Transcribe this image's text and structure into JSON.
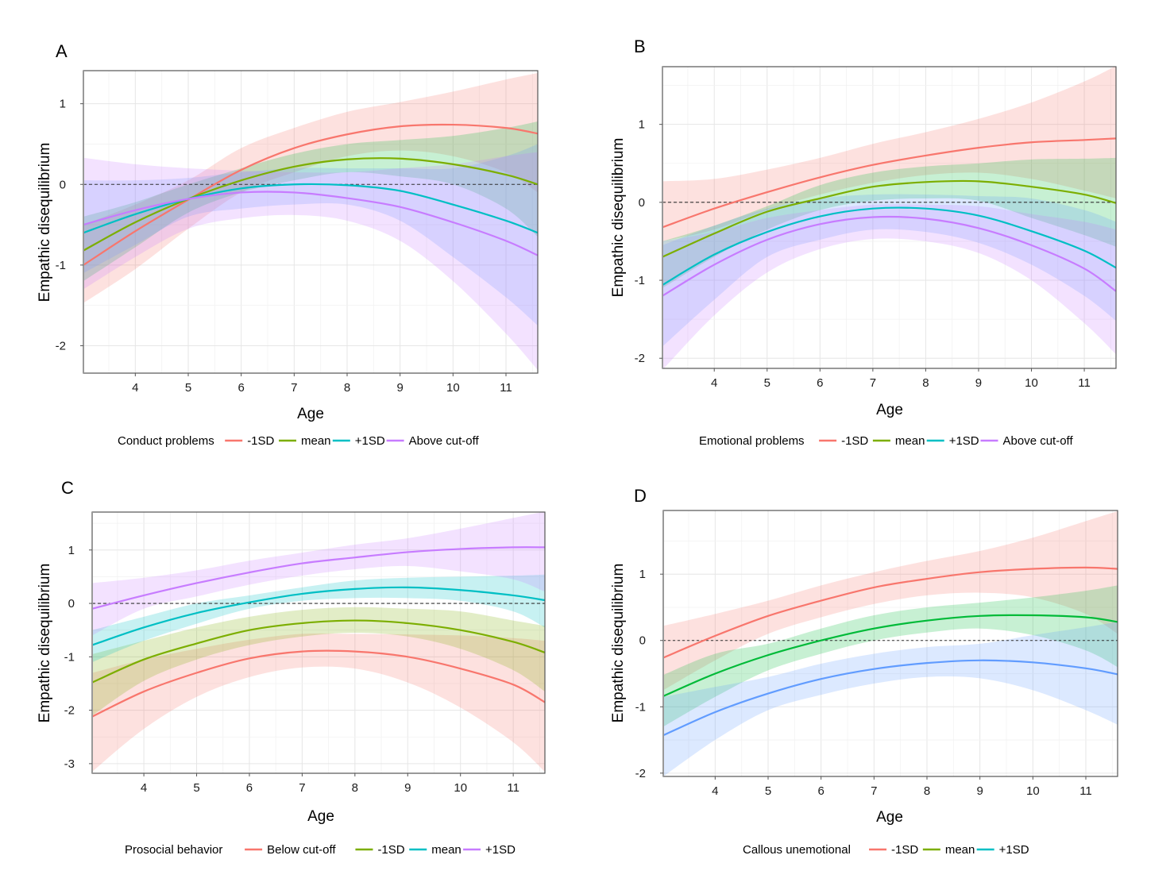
{
  "figure": {
    "description": "Four-panel figure of empathic disequilibrium trajectories by age"
  },
  "chart_data": [
    {
      "type": "line",
      "panel": "A",
      "title": "A",
      "xlabel": "Age",
      "ylabel": "Empathic disequilibrium",
      "xlim": [
        3.02,
        11.6
      ],
      "ylim": [
        -2.34,
        1.41
      ],
      "xticks": [
        4,
        5,
        6,
        7,
        8,
        9,
        10,
        11
      ],
      "yticks": [
        -2,
        -1,
        0,
        1
      ],
      "xtick_labels": [
        "4",
        "5",
        "6",
        "7",
        "8",
        "9",
        "10",
        "11"
      ],
      "ytick_labels": [
        "-2",
        "-1",
        "0",
        "1"
      ],
      "reference_line": {
        "y": 0,
        "style": "dashed"
      },
      "grid": true,
      "legend": {
        "title": "Conduct problems",
        "position": "bottom"
      },
      "x": [
        3.02,
        4,
        5,
        6,
        7,
        8,
        9,
        10,
        11,
        11.6
      ],
      "series": [
        {
          "name": "-1SD",
          "color": "#F8766D",
          "fill": "#F8766D",
          "values": [
            -1.0,
            -0.58,
            -0.19,
            0.18,
            0.45,
            0.62,
            0.72,
            0.74,
            0.7,
            0.63
          ],
          "lower": [
            -1.47,
            -1.05,
            -0.55,
            -0.1,
            0.15,
            0.35,
            0.42,
            0.35,
            0.15,
            -0.1
          ],
          "upper": [
            -0.5,
            -0.25,
            0.05,
            0.45,
            0.7,
            0.9,
            1.02,
            1.15,
            1.3,
            1.38
          ]
        },
        {
          "name": "mean",
          "color": "#7CAE00",
          "fill": "#00BA38",
          "values": [
            -0.82,
            -0.47,
            -0.18,
            0.05,
            0.22,
            0.31,
            0.32,
            0.25,
            0.12,
            0.0
          ],
          "lower": [
            -1.2,
            -0.78,
            -0.35,
            -0.1,
            0.05,
            0.15,
            0.1,
            0.0,
            -0.3,
            -0.65
          ],
          "upper": [
            -0.4,
            -0.22,
            0.0,
            0.2,
            0.38,
            0.5,
            0.55,
            0.6,
            0.7,
            0.78
          ]
        },
        {
          "name": "+1SD",
          "color": "#00BFC4",
          "fill": "#619CFF",
          "values": [
            -0.6,
            -0.37,
            -0.18,
            -0.05,
            0.0,
            -0.01,
            -0.08,
            -0.25,
            -0.45,
            -0.6
          ],
          "lower": [
            -1.1,
            -0.75,
            -0.4,
            -0.3,
            -0.25,
            -0.25,
            -0.45,
            -0.9,
            -1.4,
            -1.75
          ],
          "upper": [
            0.05,
            0.05,
            0.08,
            0.15,
            0.2,
            0.2,
            0.2,
            0.2,
            0.35,
            0.5
          ]
        },
        {
          "name": "Above cut-off",
          "color": "#C77CFF",
          "fill": "#C77CFF",
          "values": [
            -0.5,
            -0.32,
            -0.18,
            -0.1,
            -0.1,
            -0.17,
            -0.28,
            -0.47,
            -0.7,
            -0.88
          ],
          "lower": [
            -1.3,
            -0.9,
            -0.55,
            -0.42,
            -0.38,
            -0.45,
            -0.7,
            -1.2,
            -1.85,
            -2.3
          ],
          "upper": [
            0.33,
            0.25,
            0.2,
            0.17,
            0.15,
            0.15,
            0.2,
            0.25,
            0.35,
            0.4
          ]
        }
      ]
    },
    {
      "type": "line",
      "panel": "B",
      "title": "B",
      "xlabel": "Age",
      "ylabel": "Empathic disequilibrium",
      "xlim": [
        3.02,
        11.6
      ],
      "ylim": [
        -2.13,
        1.74
      ],
      "xticks": [
        4,
        5,
        6,
        7,
        8,
        9,
        10,
        11
      ],
      "yticks": [
        -2,
        -1,
        0,
        1
      ],
      "xtick_labels": [
        "4",
        "5",
        "6",
        "7",
        "8",
        "9",
        "10",
        "11"
      ],
      "ytick_labels": [
        "-2",
        "-1",
        "0",
        "1"
      ],
      "reference_line": {
        "y": 0,
        "style": "dashed"
      },
      "grid": true,
      "legend": {
        "title": "Emotional problems",
        "position": "bottom"
      },
      "x": [
        3.02,
        4,
        5,
        6,
        7,
        8,
        9,
        10,
        11,
        11.6
      ],
      "series": [
        {
          "name": "-1SD",
          "color": "#F8766D",
          "fill": "#F8766D",
          "values": [
            -0.32,
            -0.08,
            0.13,
            0.32,
            0.48,
            0.6,
            0.7,
            0.77,
            0.8,
            0.82
          ],
          "lower": [
            -0.5,
            -0.35,
            -0.1,
            0.1,
            0.25,
            0.35,
            0.38,
            0.3,
            0.15,
            0.05
          ],
          "upper": [
            0.27,
            0.3,
            0.42,
            0.57,
            0.75,
            0.9,
            1.07,
            1.28,
            1.55,
            1.75
          ]
        },
        {
          "name": "mean",
          "color": "#7CAE00",
          "fill": "#00BA38",
          "values": [
            -0.7,
            -0.4,
            -0.12,
            0.05,
            0.2,
            0.26,
            0.27,
            0.2,
            0.1,
            -0.01
          ],
          "lower": [
            -1.1,
            -0.7,
            -0.35,
            -0.1,
            0.02,
            0.05,
            0.02,
            -0.2,
            -0.42,
            -0.57
          ],
          "upper": [
            -0.5,
            -0.3,
            -0.05,
            0.22,
            0.38,
            0.46,
            0.5,
            0.55,
            0.56,
            0.57
          ]
        },
        {
          "name": "+1SD",
          "color": "#00BFC4",
          "fill": "#619CFF",
          "values": [
            -1.06,
            -0.67,
            -0.38,
            -0.18,
            -0.08,
            -0.08,
            -0.17,
            -0.37,
            -0.62,
            -0.84
          ],
          "lower": [
            -1.85,
            -1.25,
            -0.7,
            -0.48,
            -0.35,
            -0.38,
            -0.52,
            -0.8,
            -1.2,
            -1.52
          ],
          "upper": [
            -0.55,
            -0.3,
            -0.08,
            0.05,
            0.1,
            0.1,
            0.08,
            0.05,
            -0.1,
            -0.25
          ]
        },
        {
          "name": "Above cut-off",
          "color": "#C77CFF",
          "fill": "#C77CFF",
          "values": [
            -1.2,
            -0.8,
            -0.48,
            -0.28,
            -0.19,
            -0.21,
            -0.33,
            -0.55,
            -0.85,
            -1.14
          ],
          "lower": [
            -2.15,
            -1.45,
            -0.9,
            -0.6,
            -0.47,
            -0.5,
            -0.65,
            -1.0,
            -1.55,
            -1.95
          ],
          "upper": [
            -0.5,
            -0.38,
            -0.2,
            -0.1,
            -0.03,
            -0.03,
            -0.05,
            -0.15,
            -0.25,
            -0.35
          ]
        }
      ]
    },
    {
      "type": "line",
      "panel": "C",
      "title": "C",
      "xlabel": "Age",
      "ylabel": "Empathic disequilibrium",
      "xlim": [
        3.02,
        11.6
      ],
      "ylim": [
        -3.18,
        1.71
      ],
      "xticks": [
        4,
        5,
        6,
        7,
        8,
        9,
        10,
        11
      ],
      "yticks": [
        -3,
        -2,
        -1,
        0,
        1
      ],
      "xtick_labels": [
        "4",
        "5",
        "6",
        "7",
        "8",
        "9",
        "10",
        "11"
      ],
      "ytick_labels": [
        "-3",
        "-2",
        "-1",
        "0",
        "1"
      ],
      "reference_line": {
        "y": 0,
        "style": "dashed"
      },
      "grid": true,
      "legend": {
        "title": "Prosocial behavior",
        "position": "bottom"
      },
      "x": [
        3.02,
        4,
        5,
        6,
        7,
        8,
        9,
        10,
        11,
        11.6
      ],
      "series": [
        {
          "name": "Below cut-off",
          "color": "#F8766D",
          "fill": "#F8766D",
          "values": [
            -2.12,
            -1.65,
            -1.3,
            -1.03,
            -0.9,
            -0.9,
            -1.0,
            -1.22,
            -1.52,
            -1.85
          ],
          "lower": [
            -3.15,
            -2.35,
            -1.75,
            -1.38,
            -1.2,
            -1.22,
            -1.48,
            -1.95,
            -2.6,
            -3.15
          ],
          "upper": [
            -1.3,
            -1.05,
            -0.85,
            -0.68,
            -0.57,
            -0.57,
            -0.58,
            -0.6,
            -0.65,
            -0.7
          ]
        },
        {
          "name": "-1SD",
          "color": "#7CAE00",
          "fill": "#7CAE00",
          "values": [
            -1.48,
            -1.05,
            -0.75,
            -0.5,
            -0.37,
            -0.32,
            -0.37,
            -0.5,
            -0.72,
            -0.92
          ],
          "lower": [
            -2.1,
            -1.45,
            -1.05,
            -0.78,
            -0.62,
            -0.55,
            -0.62,
            -0.85,
            -1.25,
            -1.65
          ],
          "upper": [
            -0.95,
            -0.7,
            -0.45,
            -0.25,
            -0.12,
            -0.07,
            -0.1,
            -0.15,
            -0.32,
            -0.42
          ]
        },
        {
          "name": "mean",
          "color": "#00BFC4",
          "fill": "#00BFC4",
          "values": [
            -0.78,
            -0.45,
            -0.18,
            0.02,
            0.18,
            0.27,
            0.3,
            0.25,
            0.15,
            0.06
          ],
          "lower": [
            -1.1,
            -0.7,
            -0.38,
            -0.1,
            0.05,
            0.1,
            0.1,
            0.05,
            -0.15,
            -0.45
          ],
          "upper": [
            -0.5,
            -0.25,
            0.0,
            0.15,
            0.3,
            0.43,
            0.48,
            0.5,
            0.52,
            0.54
          ]
        },
        {
          "name": "+1SD",
          "color": "#C77CFF",
          "fill": "#C77CFF",
          "values": [
            -0.1,
            0.15,
            0.38,
            0.58,
            0.75,
            0.86,
            0.96,
            1.02,
            1.05,
            1.05
          ],
          "lower": [
            -0.6,
            -0.1,
            0.13,
            0.35,
            0.52,
            0.64,
            0.7,
            0.6,
            0.45,
            0.22
          ],
          "upper": [
            0.38,
            0.48,
            0.62,
            0.8,
            0.95,
            1.1,
            1.22,
            1.4,
            1.6,
            1.72
          ]
        }
      ]
    },
    {
      "type": "line",
      "panel": "D",
      "title": "D",
      "xlabel": "Age",
      "ylabel": "Empathic disequilibrium",
      "xlim": [
        3.02,
        11.6
      ],
      "ylim": [
        -2.05,
        1.96
      ],
      "xticks": [
        4,
        5,
        6,
        7,
        8,
        9,
        10,
        11
      ],
      "yticks": [
        -2,
        -1,
        0,
        1
      ],
      "xtick_labels": [
        "4",
        "5",
        "6",
        "7",
        "8",
        "9",
        "10",
        "11"
      ],
      "ytick_labels": [
        "-2",
        "-1",
        "0",
        "1"
      ],
      "reference_line": {
        "y": 0,
        "style": "dotted"
      },
      "grid": true,
      "legend": {
        "title": "Callous unemotional",
        "position": "bottom"
      },
      "x": [
        3.02,
        4,
        5,
        6,
        7,
        8,
        9,
        10,
        11,
        11.6
      ],
      "series": [
        {
          "name": "-1SD",
          "color": "#F8766D",
          "key_color": "#F8766D",
          "fill": "#F8766D",
          "values": [
            -0.26,
            0.07,
            0.37,
            0.6,
            0.8,
            0.93,
            1.03,
            1.08,
            1.1,
            1.08
          ],
          "lower": [
            -0.75,
            -0.3,
            0.1,
            0.35,
            0.55,
            0.68,
            0.72,
            0.65,
            0.4,
            0.1
          ],
          "upper": [
            0.22,
            0.4,
            0.6,
            0.83,
            1.03,
            1.2,
            1.35,
            1.55,
            1.8,
            1.95
          ]
        },
        {
          "name": "mean",
          "color": "#00BA38",
          "key_color": "#7CAE00",
          "fill": "#00BA38",
          "values": [
            -0.84,
            -0.5,
            -0.22,
            0.0,
            0.18,
            0.3,
            0.37,
            0.38,
            0.35,
            0.28
          ],
          "lower": [
            -1.3,
            -0.85,
            -0.45,
            -0.2,
            0.0,
            0.12,
            0.18,
            0.08,
            -0.15,
            -0.4
          ],
          "upper": [
            -0.52,
            -0.2,
            -0.05,
            0.18,
            0.38,
            0.5,
            0.57,
            0.65,
            0.75,
            0.83
          ]
        },
        {
          "name": "+1SD",
          "color": "#619CFF",
          "key_color": "#00BFC4",
          "fill": "#619CFF",
          "values": [
            -1.43,
            -1.08,
            -0.8,
            -0.58,
            -0.43,
            -0.34,
            -0.3,
            -0.33,
            -0.42,
            -0.51
          ],
          "lower": [
            -2.05,
            -1.5,
            -1.05,
            -0.82,
            -0.65,
            -0.55,
            -0.57,
            -0.75,
            -1.05,
            -1.27
          ],
          "upper": [
            -0.85,
            -0.7,
            -0.55,
            -0.35,
            -0.2,
            -0.1,
            -0.05,
            0.08,
            0.2,
            0.28
          ]
        }
      ]
    }
  ]
}
